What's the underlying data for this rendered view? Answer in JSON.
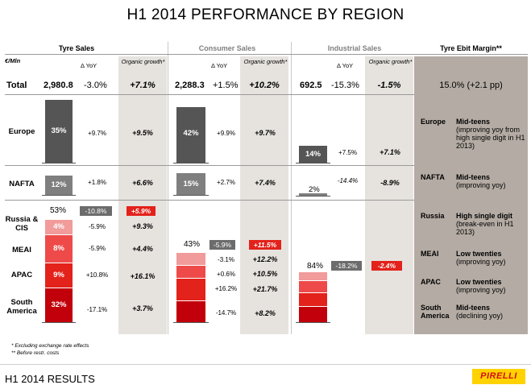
{
  "title": "H1 2014 PERFORMANCE BY REGION",
  "headers": {
    "tyre_sales": "Tyre Sales",
    "consumer_sales": "Consumer Sales",
    "industrial_sales": "Industrial Sales",
    "ebit_margin": "Tyre Ebit Margin**",
    "unit": "€/Mln",
    "yoy": "Δ YoY",
    "organic": "Organic growth*"
  },
  "regions": {
    "total": "Total",
    "europe": "Europe",
    "nafta": "NAFTA",
    "russia_cis": "Russia & CIS",
    "meai": "MEAI",
    "apac": "APAC",
    "south_america": "South America"
  },
  "chart_data": [
    {
      "type": "table",
      "title": "Tyre Sales",
      "total": {
        "value": "2,980.8",
        "yoy": "-3.0%",
        "organic": "+7.1%"
      },
      "rows": [
        {
          "region": "Europe",
          "share": "35%",
          "share_value": 35,
          "yoy": "+9.7%",
          "organic": "+9.5%"
        },
        {
          "region": "NAFTA",
          "share": "12%",
          "share_value": 12,
          "yoy": "+1.8%",
          "organic": "+6.6%"
        },
        {
          "region": "Russia & CIS",
          "share": "4%",
          "share_value": 4,
          "yoy": "-5.9%",
          "organic": "+9.3%"
        },
        {
          "region": "MEAI",
          "share": "8%",
          "share_value": 8,
          "yoy": "-5.9%",
          "organic": "+4.4%"
        },
        {
          "region": "APAC",
          "share": "9%",
          "share_value": 9,
          "yoy": "+10.8%",
          "organic": "+16.1%"
        },
        {
          "region": "South America",
          "share": "32%",
          "share_value": 32,
          "yoy": "-17.1%",
          "organic": "+3.7%"
        }
      ],
      "emerging": {
        "share": "53%",
        "yoy": "-10.8%",
        "organic": "+5.9%"
      }
    },
    {
      "type": "table",
      "title": "Consumer Sales",
      "total": {
        "value": "2,288.3",
        "yoy": "+1.5%",
        "organic": "+10.2%"
      },
      "rows": [
        {
          "region": "Europe",
          "share": "42%",
          "share_value": 42,
          "yoy": "+9.9%",
          "organic": "+9.7%"
        },
        {
          "region": "NAFTA",
          "share": "15%",
          "share_value": 15,
          "yoy": "+2.7%",
          "organic": "+7.4%"
        },
        {
          "region": "Russia & CIS",
          "yoy": "-3.1%",
          "organic": "+12.2%"
        },
        {
          "region": "MEAI",
          "yoy": "+0.6%",
          "organic": "+10.5%"
        },
        {
          "region": "APAC",
          "yoy": "+16.2%",
          "organic": "+21.7%"
        },
        {
          "region": "South America",
          "yoy": "-14.7%",
          "organic": "+8.2%"
        }
      ],
      "emerging": {
        "share": "43%",
        "yoy": "-5.9%",
        "organic": "+11.5%"
      }
    },
    {
      "type": "table",
      "title": "Industrial Sales",
      "total": {
        "value": "692.5",
        "yoy": "-15.3%",
        "organic": "-1.5%"
      },
      "rows": [
        {
          "region": "Europe",
          "share": "14%",
          "share_value": 14,
          "yoy": "+7.5%",
          "organic": "+7.1%"
        },
        {
          "region": "NAFTA",
          "share": "2%",
          "share_value": 2,
          "yoy": "-14.4%",
          "organic": "-8.9%"
        }
      ],
      "emerging": {
        "share": "84%",
        "yoy": "-18.2%",
        "organic": "-2.4%"
      }
    },
    {
      "type": "table",
      "title": "Tyre Ebit Margin**",
      "total": "15.0% (+2.1 pp)",
      "rows": [
        {
          "region": "Europe",
          "margin": "Mid-teens",
          "note": "(improving yoy from high single digit in H1 2013)"
        },
        {
          "region": "NAFTA",
          "margin": "Mid-teens",
          "note": "(improving yoy)"
        },
        {
          "region": "Russia",
          "margin": "High single digit",
          "note": "(break-even in H1 2013)"
        },
        {
          "region": "MEAI",
          "margin": "Low twenties",
          "note": "(improving yoy)"
        },
        {
          "region": "APAC",
          "margin": "Low twenties",
          "note": "(improving yoy)"
        },
        {
          "region": "South America",
          "margin": "Mid-teens",
          "note": "(declining yoy)"
        }
      ]
    }
  ],
  "footnotes": {
    "f1": "* Excluding exchange rate effects",
    "f2": "** Before restr. costs"
  },
  "footer": {
    "title": "H1 2014 RESULTS",
    "logo": "PIRELLI"
  },
  "colors": {
    "bar_dark": "#555555",
    "bar_grey": "#7f7f7f",
    "red_1": "#f19b9b",
    "red_2": "#ee4a4a",
    "red_3": "#e3221b",
    "red_4": "#c2000b",
    "shade": "#e6e3df",
    "ebit_shade": "#b4aca4",
    "logo_bg": "#ffd200",
    "logo_text": "#d10f17"
  }
}
